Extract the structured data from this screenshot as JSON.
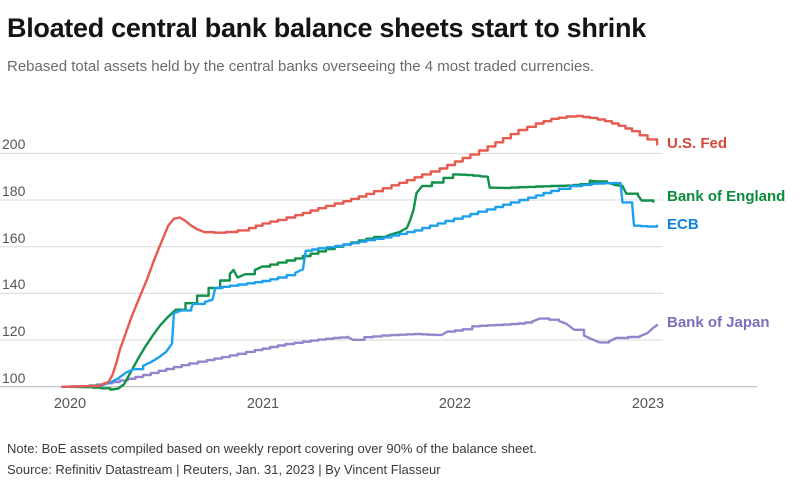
{
  "chart_data": {
    "type": "line",
    "title": "Bloated central bank balance sheets start to shrink",
    "subtitle": "Rebased total assets held by the central banks overseeing the 4 most traded currencies.",
    "xlabel": "",
    "ylabel": "",
    "x_tick_labels": [
      "2020",
      "2021",
      "2022",
      "2023"
    ],
    "x_tick_years": [
      2020,
      2021,
      2022,
      2023
    ],
    "y_ticks": [
      100,
      120,
      140,
      160,
      180,
      200
    ],
    "ylim": [
      96,
      222
    ],
    "xlim": [
      2019.95,
      2023.08
    ],
    "grid": "horizontal",
    "legend_position": "right-edge-labels",
    "index_base": "100 = start of 2020",
    "series": [
      {
        "name": "Bank of Japan",
        "color": "#9484cb",
        "label_color": "#7e6dbd",
        "points": [
          [
            2019.96,
            100
          ],
          [
            2020.06,
            100.2
          ],
          [
            2020.14,
            100.9
          ],
          [
            2020.22,
            102
          ],
          [
            2020.3,
            103.4
          ],
          [
            2020.38,
            105
          ],
          [
            2020.46,
            106.8
          ],
          [
            2020.54,
            108.4
          ],
          [
            2020.62,
            110
          ],
          [
            2020.71,
            111.4
          ],
          [
            2020.79,
            112.7
          ],
          [
            2020.87,
            114.1
          ],
          [
            2020.96,
            115.7
          ],
          [
            2021.04,
            117
          ],
          [
            2021.12,
            118.3
          ],
          [
            2021.21,
            119.3
          ],
          [
            2021.29,
            120.2
          ],
          [
            2021.37,
            120.9
          ],
          [
            2021.44,
            121.4
          ],
          [
            2021.47,
            120.1
          ],
          [
            2021.53,
            121.2
          ],
          [
            2021.62,
            121.9
          ],
          [
            2021.71,
            122.3
          ],
          [
            2021.79,
            122.6
          ],
          [
            2021.86,
            122.3
          ],
          [
            2021.93,
            122.1
          ],
          [
            2021.96,
            123.6
          ],
          [
            2022.04,
            124.6
          ],
          [
            2022.09,
            125.9
          ],
          [
            2022.17,
            126.3
          ],
          [
            2022.25,
            126.6
          ],
          [
            2022.33,
            127.1
          ],
          [
            2022.4,
            127.9
          ],
          [
            2022.44,
            129.2
          ],
          [
            2022.49,
            128.7
          ],
          [
            2022.54,
            128.2
          ],
          [
            2022.58,
            126.9
          ],
          [
            2022.62,
            124.4
          ],
          [
            2022.67,
            121.9
          ],
          [
            2022.71,
            120.4
          ],
          [
            2022.75,
            119
          ],
          [
            2022.8,
            119.4
          ],
          [
            2022.84,
            120.9
          ],
          [
            2022.9,
            121.3
          ],
          [
            2022.96,
            121.6
          ],
          [
            2023.0,
            123
          ],
          [
            2023.03,
            125.3
          ],
          [
            2023.05,
            126.4
          ]
        ]
      },
      {
        "name": "Bank of England",
        "color": "#119149",
        "label_color": "#0b8c3d",
        "points": [
          [
            2019.96,
            100
          ],
          [
            2020.08,
            99.8
          ],
          [
            2020.16,
            99.3
          ],
          [
            2020.21,
            98.7
          ],
          [
            2020.25,
            99.2
          ],
          [
            2020.28,
            101
          ],
          [
            2020.31,
            105.5
          ],
          [
            2020.35,
            111.5
          ],
          [
            2020.39,
            117
          ],
          [
            2020.43,
            122
          ],
          [
            2020.47,
            126.5
          ],
          [
            2020.51,
            130
          ],
          [
            2020.55,
            133
          ],
          [
            2020.6,
            135.8
          ],
          [
            2020.66,
            139
          ],
          [
            2020.72,
            142.3
          ],
          [
            2020.78,
            145.5
          ],
          [
            2020.83,
            148.3
          ],
          [
            2020.85,
            150
          ],
          [
            2020.87,
            146.8
          ],
          [
            2020.91,
            148.2
          ],
          [
            2020.96,
            150
          ],
          [
            2021.0,
            151.5
          ],
          [
            2021.08,
            153.2
          ],
          [
            2021.17,
            155
          ],
          [
            2021.25,
            157
          ],
          [
            2021.33,
            159
          ],
          [
            2021.42,
            161
          ],
          [
            2021.5,
            162.7
          ],
          [
            2021.58,
            164.2
          ],
          [
            2021.63,
            164
          ],
          [
            2021.67,
            165.3
          ],
          [
            2021.71,
            166.2
          ],
          [
            2021.75,
            168
          ],
          [
            2021.77,
            172
          ],
          [
            2021.785,
            176
          ],
          [
            2021.8,
            183
          ],
          [
            2021.83,
            186
          ],
          [
            2021.88,
            187.5
          ],
          [
            2021.94,
            189.5
          ],
          [
            2021.99,
            191
          ],
          [
            2022.06,
            190.7
          ],
          [
            2022.13,
            190.2
          ],
          [
            2022.17,
            190
          ],
          [
            2022.18,
            185.3
          ],
          [
            2022.25,
            185.2
          ],
          [
            2022.33,
            185.5
          ],
          [
            2022.42,
            185.8
          ],
          [
            2022.5,
            186
          ],
          [
            2022.58,
            186.2
          ],
          [
            2022.65,
            186.8
          ],
          [
            2022.7,
            188.3
          ],
          [
            2022.74,
            188
          ],
          [
            2022.79,
            187.5
          ],
          [
            2022.83,
            186.5
          ],
          [
            2022.87,
            186
          ],
          [
            2022.89,
            182.7
          ],
          [
            2022.95,
            182
          ],
          [
            2022.97,
            179.8
          ],
          [
            2023.03,
            179.3
          ]
        ]
      },
      {
        "name": "ECB",
        "color": "#1fa0ef",
        "label_color": "#0e82e2",
        "points": [
          [
            2019.96,
            100
          ],
          [
            2020.1,
            100.3
          ],
          [
            2020.17,
            100.8
          ],
          [
            2020.21,
            101.8
          ],
          [
            2020.25,
            103.5
          ],
          [
            2020.29,
            106
          ],
          [
            2020.33,
            107.5
          ],
          [
            2020.38,
            109
          ],
          [
            2020.42,
            110.5
          ],
          [
            2020.46,
            112.5
          ],
          [
            2020.5,
            115
          ],
          [
            2020.53,
            118.5
          ],
          [
            2020.54,
            131.5
          ],
          [
            2020.58,
            132.7
          ],
          [
            2020.63,
            133.8
          ],
          [
            2020.64,
            135.5
          ],
          [
            2020.7,
            136.3
          ],
          [
            2020.74,
            137.3
          ],
          [
            2020.755,
            142.3
          ],
          [
            2020.83,
            143.3
          ],
          [
            2020.92,
            144.3
          ],
          [
            2021.0,
            145.3
          ],
          [
            2021.08,
            146.8
          ],
          [
            2021.17,
            148.8
          ],
          [
            2021.21,
            150.3
          ],
          [
            2021.225,
            158.3
          ],
          [
            2021.29,
            159.3
          ],
          [
            2021.38,
            160.3
          ],
          [
            2021.46,
            161.5
          ],
          [
            2021.54,
            162.8
          ],
          [
            2021.63,
            164
          ],
          [
            2021.71,
            165.5
          ],
          [
            2021.79,
            167
          ],
          [
            2021.87,
            169
          ],
          [
            2021.95,
            171
          ],
          [
            2022.04,
            173
          ],
          [
            2022.12,
            175
          ],
          [
            2022.21,
            177
          ],
          [
            2022.29,
            179
          ],
          [
            2022.38,
            181
          ],
          [
            2022.46,
            183
          ],
          [
            2022.54,
            184.8
          ],
          [
            2022.6,
            186
          ],
          [
            2022.66,
            186.5
          ],
          [
            2022.71,
            187
          ],
          [
            2022.78,
            187.2
          ],
          [
            2022.86,
            187.3
          ],
          [
            2022.87,
            179
          ],
          [
            2022.92,
            178.8
          ],
          [
            2022.93,
            169
          ],
          [
            2023.0,
            168.6
          ],
          [
            2023.05,
            169
          ]
        ]
      },
      {
        "name": "U.S. Fed",
        "color": "#e75a50",
        "label_color": "#d6463a",
        "points": [
          [
            2019.96,
            100
          ],
          [
            2020.1,
            100.3
          ],
          [
            2020.16,
            100.8
          ],
          [
            2020.2,
            102
          ],
          [
            2020.22,
            105
          ],
          [
            2020.24,
            110
          ],
          [
            2020.26,
            116
          ],
          [
            2020.29,
            123
          ],
          [
            2020.32,
            130
          ],
          [
            2020.36,
            138
          ],
          [
            2020.4,
            146
          ],
          [
            2020.44,
            155
          ],
          [
            2020.48,
            163
          ],
          [
            2020.51,
            169
          ],
          [
            2020.54,
            172
          ],
          [
            2020.57,
            172.5
          ],
          [
            2020.6,
            171
          ],
          [
            2020.63,
            169
          ],
          [
            2020.66,
            167.5
          ],
          [
            2020.7,
            166.2
          ],
          [
            2020.75,
            166
          ],
          [
            2020.81,
            166.3
          ],
          [
            2020.87,
            167
          ],
          [
            2020.93,
            168
          ],
          [
            2021.0,
            170
          ],
          [
            2021.08,
            171.5
          ],
          [
            2021.17,
            173.5
          ],
          [
            2021.25,
            175.5
          ],
          [
            2021.33,
            177.5
          ],
          [
            2021.42,
            179.5
          ],
          [
            2021.5,
            181.5
          ],
          [
            2021.58,
            183.8
          ],
          [
            2021.67,
            186.3
          ],
          [
            2021.75,
            188.5
          ],
          [
            2021.83,
            191
          ],
          [
            2021.92,
            193.5
          ],
          [
            2022.0,
            196.5
          ],
          [
            2022.08,
            199.5
          ],
          [
            2022.17,
            203
          ],
          [
            2022.25,
            206.5
          ],
          [
            2022.33,
            210
          ],
          [
            2022.42,
            212.8
          ],
          [
            2022.5,
            214.8
          ],
          [
            2022.58,
            215.8
          ],
          [
            2022.63,
            216
          ],
          [
            2022.7,
            215.2
          ],
          [
            2022.78,
            213.8
          ],
          [
            2022.85,
            211.8
          ],
          [
            2022.92,
            209.5
          ],
          [
            2023.0,
            206
          ],
          [
            2023.05,
            203.8
          ]
        ]
      }
    ]
  },
  "footer": {
    "note": "Note: BoE assets compiled based on weekly report covering over 90% of the balance sheet.",
    "source": "Source: Refinitiv Datastream | Reuters, Jan. 31, 2023 | By Vincent Flasseur"
  }
}
